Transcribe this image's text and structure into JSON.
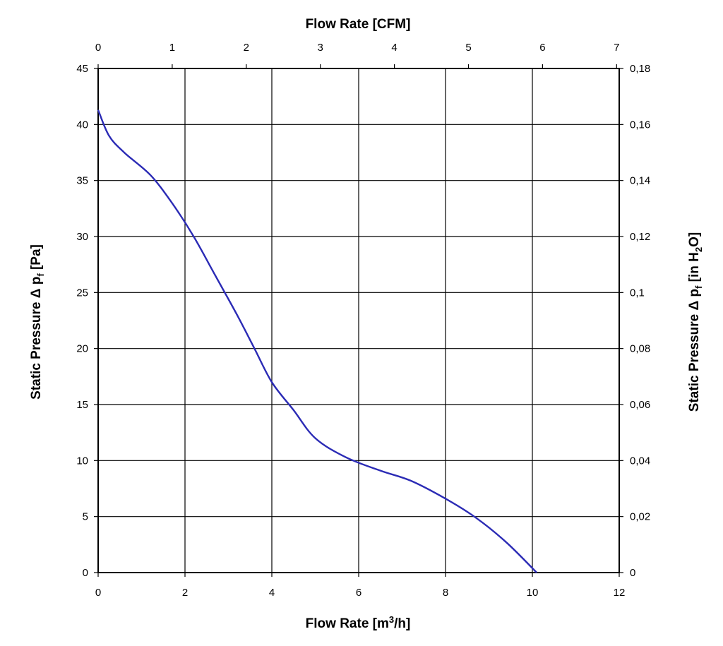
{
  "chart_data": {
    "type": "line",
    "x_bottom": {
      "label_main": "Flow Rate [m",
      "label_sup": "3",
      "label_tail": "/h]",
      "ticks": [
        "0",
        "2",
        "4",
        "6",
        "8",
        "10",
        "12"
      ],
      "range": [
        0,
        12
      ]
    },
    "x_top": {
      "label": "Flow Rate [CFM]",
      "ticks": [
        "0",
        "1",
        "2",
        "3",
        "4",
        "5",
        "6",
        "7"
      ],
      "range": [
        0,
        7
      ]
    },
    "y_left": {
      "label_main": "Static Pressure Δ p",
      "label_sub": "f",
      "label_tail": " [Pa]",
      "ticks": [
        "0",
        "5",
        "10",
        "15",
        "20",
        "25",
        "30",
        "35",
        "40",
        "45"
      ],
      "range": [
        0,
        45
      ]
    },
    "y_right": {
      "label_main": "Static Pressure Δ p",
      "label_sub": "f",
      "label_mid": " [in H",
      "label_sub2": "2",
      "label_tail": "O]",
      "ticks": [
        "0",
        "0,02",
        "0,04",
        "0,06",
        "0,08",
        "0,1",
        "0,12",
        "0,14",
        "0,16",
        "0,18"
      ],
      "range": [
        0,
        0.18
      ]
    },
    "grid": true,
    "series": [
      {
        "color": "#2b2bb5",
        "x": [
          0,
          0.25,
          0.6,
          1.2,
          1.7,
          2.2,
          2.7,
          3.2,
          3.6,
          4.0,
          4.5,
          5.0,
          5.7,
          6.5,
          7.2,
          8.0,
          8.7,
          9.4,
          10.1
        ],
        "y": [
          41.3,
          39.0,
          37.5,
          35.5,
          33.0,
          30.0,
          26.5,
          23.0,
          20.0,
          17.0,
          14.5,
          12.0,
          10.3,
          9.1,
          8.2,
          6.6,
          4.9,
          2.7,
          0
        ]
      }
    ]
  }
}
